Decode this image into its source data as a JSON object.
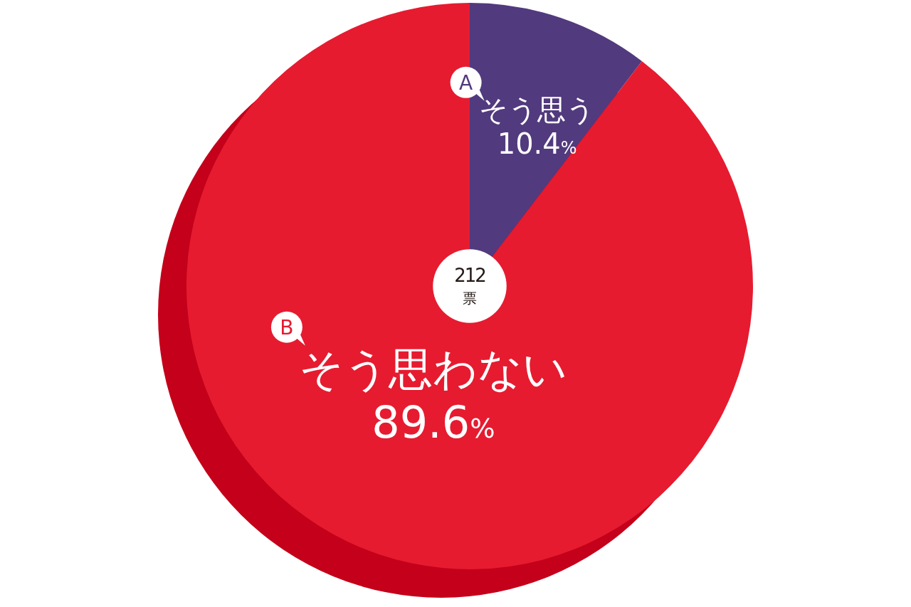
{
  "chart_data": {
    "type": "donut",
    "categories": [
      "そう思う",
      "そう思わない"
    ],
    "values": [
      10.4,
      89.6
    ],
    "colors": [
      "#523a7e",
      "#e61b30"
    ],
    "value_labels": [
      "10.4%",
      "89.6%"
    ],
    "annotations": [
      "A",
      "B",
      "212",
      "票"
    ]
  }
}
